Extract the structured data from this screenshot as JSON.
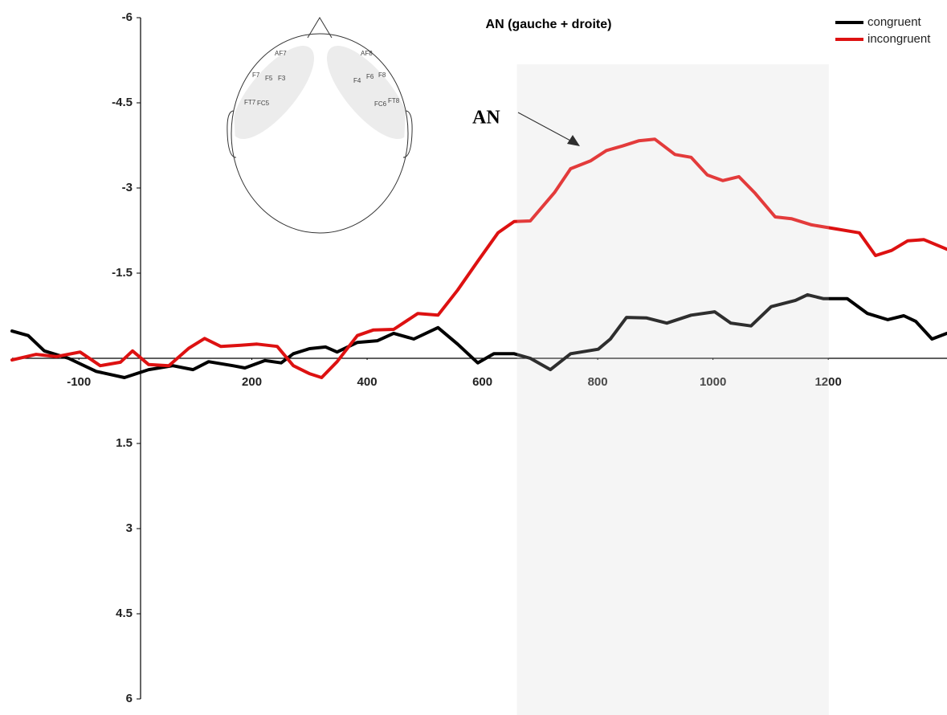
{
  "chart_data": {
    "type": "line",
    "title": "AN (gauche + droite)",
    "annotation": "AN",
    "electrodes": [
      "AF7",
      "F7",
      "F5",
      "F3",
      "FT7",
      "FC5",
      "AF8",
      "F4",
      "F6",
      "F8",
      "FC6",
      "FT8"
    ],
    "xlim": [
      -216,
      1406
    ],
    "xticks": [
      -100,
      200,
      400,
      600,
      800,
      1000,
      1200
    ],
    "ylim": [
      -6,
      6
    ],
    "y_inverted": true,
    "yticks": [
      -6,
      -4.5,
      -3,
      -1.5,
      1.5,
      3,
      4.5,
      6
    ],
    "highlight": [
      660,
      1201
    ],
    "legend": "upper right",
    "series": [
      {
        "name": "congruent",
        "color": "#000000",
        "x": [
          -216,
          -188,
          -160,
          -118,
          -70,
          -21,
          21,
          63,
          98,
          125,
          167,
          188,
          223,
          251,
          272,
          300,
          328,
          348,
          383,
          418,
          446,
          481,
          523,
          557,
          592,
          620,
          655,
          683,
          718,
          753,
          801,
          822,
          850,
          885,
          920,
          962,
          1003,
          1031,
          1066,
          1101,
          1143,
          1164,
          1192,
          1233,
          1268,
          1303,
          1331,
          1352,
          1380,
          1406
        ],
        "values": [
          -0.48,
          -0.4,
          -0.13,
          0,
          0.23,
          0.34,
          0.2,
          0.13,
          0.2,
          0.06,
          0.13,
          0.17,
          0.04,
          0.08,
          -0.08,
          -0.17,
          -0.2,
          -0.11,
          -0.28,
          -0.31,
          -0.44,
          -0.34,
          -0.54,
          -0.25,
          0.08,
          -0.08,
          -0.08,
          0,
          0.2,
          -0.08,
          -0.16,
          -0.34,
          -0.72,
          -0.71,
          -0.62,
          -0.76,
          -0.82,
          -0.62,
          -0.57,
          -0.91,
          -1.02,
          -1.12,
          -1.05,
          -1.05,
          -0.79,
          -0.68,
          -0.75,
          -0.65,
          -0.34,
          -0.44
        ]
      },
      {
        "name": "incongruent",
        "color": "#dd1111",
        "x": [
          -216,
          -174,
          -139,
          -98,
          -63,
          -28,
          -7,
          21,
          56,
          91,
          118,
          146,
          181,
          209,
          244,
          272,
          300,
          321,
          348,
          383,
          411,
          446,
          488,
          523,
          557,
          592,
          627,
          655,
          683,
          725,
          753,
          788,
          815,
          843,
          871,
          899,
          934,
          962,
          990,
          1017,
          1045,
          1073,
          1108,
          1136,
          1171,
          1213,
          1254,
          1282,
          1310,
          1338,
          1366,
          1406
        ],
        "values": [
          0.03,
          -0.07,
          -0.03,
          -0.11,
          0.13,
          0.07,
          -0.13,
          0.11,
          0.13,
          -0.18,
          -0.35,
          -0.21,
          -0.23,
          -0.25,
          -0.21,
          0.13,
          0.27,
          0.34,
          0.06,
          -0.4,
          -0.5,
          -0.51,
          -0.79,
          -0.76,
          -1.2,
          -1.71,
          -2.21,
          -2.41,
          -2.42,
          -2.92,
          -3.34,
          -3.48,
          -3.66,
          -3.74,
          -3.83,
          -3.86,
          -3.59,
          -3.54,
          -3.23,
          -3.13,
          -3.2,
          -2.91,
          -2.49,
          -2.46,
          -2.35,
          -2.28,
          -2.21,
          -1.81,
          -1.9,
          -2.07,
          -2.09,
          -1.92
        ]
      }
    ]
  }
}
